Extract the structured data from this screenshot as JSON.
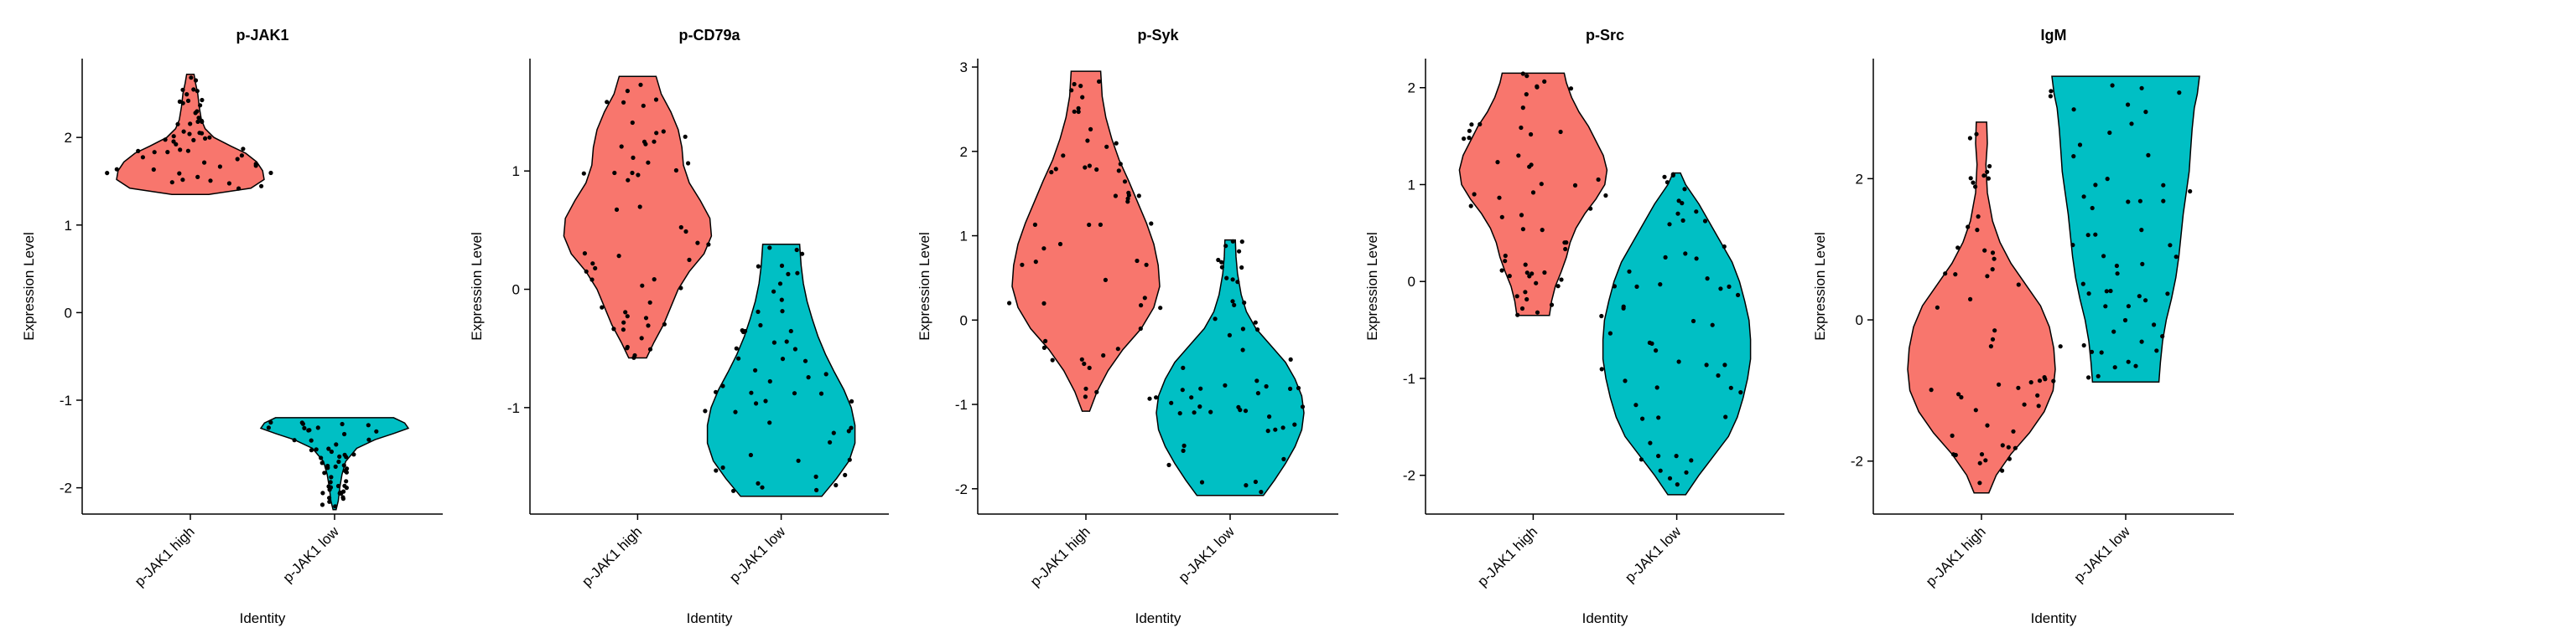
{
  "chart_data": [
    {
      "type": "violin",
      "title": "p-JAK1",
      "xlabel": "Identity",
      "ylabel": "Expression Level",
      "categories": [
        "p-JAK1 high",
        "p-JAK1 low"
      ],
      "yticks": [
        -2,
        -1,
        0,
        1,
        2
      ],
      "ylim": [
        -2.3,
        2.9
      ],
      "colors": [
        "#F8766D",
        "#00BFC4"
      ],
      "groups": [
        {
          "min": 1.35,
          "max": 2.72,
          "profile": [
            [
              1.35,
              0.25
            ],
            [
              1.42,
              0.82
            ],
            [
              1.52,
              1.0
            ],
            [
              1.62,
              0.98
            ],
            [
              1.72,
              0.9
            ],
            [
              1.82,
              0.75
            ],
            [
              1.9,
              0.55
            ],
            [
              2.0,
              0.32
            ],
            [
              2.1,
              0.2
            ],
            [
              2.2,
              0.15
            ],
            [
              2.35,
              0.12
            ],
            [
              2.5,
              0.1
            ],
            [
              2.62,
              0.07
            ],
            [
              2.72,
              0.05
            ]
          ]
        },
        {
          "min": -2.25,
          "max": -1.2,
          "profile": [
            [
              -2.25,
              0.02
            ],
            [
              -2.15,
              0.05
            ],
            [
              -2.0,
              0.07
            ],
            [
              -1.85,
              0.1
            ],
            [
              -1.7,
              0.15
            ],
            [
              -1.55,
              0.3
            ],
            [
              -1.45,
              0.55
            ],
            [
              -1.38,
              0.8
            ],
            [
              -1.32,
              1.0
            ],
            [
              -1.26,
              0.95
            ],
            [
              -1.2,
              0.8
            ]
          ]
        }
      ]
    },
    {
      "type": "violin",
      "title": "p-CD79a",
      "xlabel": "Identity",
      "ylabel": "Expression Level",
      "categories": [
        "p-JAK1 high",
        "p-JAK1 low"
      ],
      "yticks": [
        -1,
        0,
        1
      ],
      "ylim": [
        -1.9,
        1.95
      ],
      "colors": [
        "#F8766D",
        "#00BFC4"
      ],
      "groups": [
        {
          "min": -0.58,
          "max": 1.8,
          "profile": [
            [
              -0.58,
              0.12
            ],
            [
              -0.45,
              0.22
            ],
            [
              -0.3,
              0.35
            ],
            [
              -0.15,
              0.45
            ],
            [
              0.0,
              0.55
            ],
            [
              0.15,
              0.7
            ],
            [
              0.3,
              0.9
            ],
            [
              0.45,
              1.0
            ],
            [
              0.6,
              0.98
            ],
            [
              0.75,
              0.85
            ],
            [
              0.9,
              0.7
            ],
            [
              1.05,
              0.62
            ],
            [
              1.2,
              0.6
            ],
            [
              1.35,
              0.55
            ],
            [
              1.5,
              0.45
            ],
            [
              1.65,
              0.32
            ],
            [
              1.8,
              0.25
            ]
          ]
        },
        {
          "min": -1.75,
          "max": 0.38,
          "profile": [
            [
              -1.75,
              0.55
            ],
            [
              -1.6,
              0.75
            ],
            [
              -1.45,
              0.92
            ],
            [
              -1.3,
              1.0
            ],
            [
              -1.15,
              1.0
            ],
            [
              -1.0,
              0.95
            ],
            [
              -0.85,
              0.85
            ],
            [
              -0.7,
              0.72
            ],
            [
              -0.55,
              0.6
            ],
            [
              -0.4,
              0.5
            ],
            [
              -0.25,
              0.42
            ],
            [
              -0.1,
              0.35
            ],
            [
              0.05,
              0.3
            ],
            [
              0.2,
              0.27
            ],
            [
              0.38,
              0.25
            ]
          ]
        }
      ]
    },
    {
      "type": "violin",
      "title": "p-Syk",
      "xlabel": "Identity",
      "ylabel": "Expression Level",
      "categories": [
        "p-JAK1 high",
        "p-JAK1 low"
      ],
      "yticks": [
        -2,
        -1,
        0,
        1,
        2,
        3
      ],
      "ylim": [
        -2.3,
        3.1
      ],
      "colors": [
        "#F8766D",
        "#00BFC4"
      ],
      "groups": [
        {
          "min": -1.08,
          "max": 2.95,
          "profile": [
            [
              -1.08,
              0.05
            ],
            [
              -0.85,
              0.15
            ],
            [
              -0.6,
              0.3
            ],
            [
              -0.35,
              0.5
            ],
            [
              -0.1,
              0.75
            ],
            [
              0.15,
              0.92
            ],
            [
              0.4,
              1.0
            ],
            [
              0.65,
              0.98
            ],
            [
              0.9,
              0.92
            ],
            [
              1.15,
              0.82
            ],
            [
              1.4,
              0.7
            ],
            [
              1.65,
              0.58
            ],
            [
              1.9,
              0.45
            ],
            [
              2.15,
              0.35
            ],
            [
              2.4,
              0.27
            ],
            [
              2.65,
              0.22
            ],
            [
              2.95,
              0.2
            ]
          ]
        },
        {
          "min": -2.08,
          "max": 0.95,
          "profile": [
            [
              -2.08,
              0.45
            ],
            [
              -1.9,
              0.6
            ],
            [
              -1.7,
              0.75
            ],
            [
              -1.5,
              0.88
            ],
            [
              -1.3,
              0.97
            ],
            [
              -1.1,
              1.0
            ],
            [
              -0.9,
              0.97
            ],
            [
              -0.7,
              0.88
            ],
            [
              -0.5,
              0.75
            ],
            [
              -0.3,
              0.55
            ],
            [
              -0.1,
              0.35
            ],
            [
              0.1,
              0.22
            ],
            [
              0.3,
              0.15
            ],
            [
              0.55,
              0.1
            ],
            [
              0.75,
              0.08
            ],
            [
              0.95,
              0.07
            ]
          ]
        }
      ]
    },
    {
      "type": "violin",
      "title": "p-Src",
      "xlabel": "Identity",
      "ylabel": "Expression Level",
      "categories": [
        "p-JAK1 high",
        "p-JAK1 low"
      ],
      "yticks": [
        -2,
        -1,
        0,
        1,
        2
      ],
      "ylim": [
        -2.4,
        2.3
      ],
      "colors": [
        "#F8766D",
        "#00BFC4"
      ],
      "groups": [
        {
          "min": -0.35,
          "max": 2.15,
          "profile": [
            [
              -0.35,
              0.22
            ],
            [
              -0.2,
              0.25
            ],
            [
              -0.05,
              0.3
            ],
            [
              0.1,
              0.38
            ],
            [
              0.25,
              0.45
            ],
            [
              0.4,
              0.5
            ],
            [
              0.55,
              0.58
            ],
            [
              0.7,
              0.7
            ],
            [
              0.85,
              0.85
            ],
            [
              1.0,
              0.97
            ],
            [
              1.15,
              1.0
            ],
            [
              1.3,
              0.95
            ],
            [
              1.45,
              0.85
            ],
            [
              1.6,
              0.75
            ],
            [
              1.75,
              0.62
            ],
            [
              1.9,
              0.52
            ],
            [
              2.05,
              0.45
            ],
            [
              2.15,
              0.42
            ]
          ]
        },
        {
          "min": -2.2,
          "max": 1.12,
          "profile": [
            [
              -2.2,
              0.12
            ],
            [
              -2.0,
              0.3
            ],
            [
              -1.8,
              0.5
            ],
            [
              -1.6,
              0.7
            ],
            [
              -1.4,
              0.82
            ],
            [
              -1.2,
              0.9
            ],
            [
              -1.0,
              0.96
            ],
            [
              -0.8,
              1.0
            ],
            [
              -0.6,
              1.0
            ],
            [
              -0.4,
              0.98
            ],
            [
              -0.2,
              0.92
            ],
            [
              0.0,
              0.85
            ],
            [
              0.2,
              0.75
            ],
            [
              0.4,
              0.6
            ],
            [
              0.6,
              0.45
            ],
            [
              0.8,
              0.3
            ],
            [
              1.0,
              0.12
            ],
            [
              1.12,
              0.05
            ]
          ]
        }
      ]
    },
    {
      "type": "violin",
      "title": "IgM",
      "xlabel": "Identity",
      "ylabel": "Expression Level",
      "categories": [
        "p-JAK1 high",
        "p-JAK1 low"
      ],
      "yticks": [
        -2,
        0,
        2
      ],
      "ylim": [
        -2.75,
        3.7
      ],
      "colors": [
        "#F8766D",
        "#00BFC4"
      ],
      "groups": [
        {
          "min": -2.45,
          "max": 2.8,
          "profile": [
            [
              -2.45,
              0.1
            ],
            [
              -2.2,
              0.2
            ],
            [
              -1.9,
              0.4
            ],
            [
              -1.6,
              0.65
            ],
            [
              -1.3,
              0.85
            ],
            [
              -1.0,
              0.97
            ],
            [
              -0.7,
              1.0
            ],
            [
              -0.4,
              0.98
            ],
            [
              -0.1,
              0.92
            ],
            [
              0.2,
              0.8
            ],
            [
              0.5,
              0.6
            ],
            [
              0.8,
              0.4
            ],
            [
              1.1,
              0.25
            ],
            [
              1.4,
              0.15
            ],
            [
              1.8,
              0.08
            ],
            [
              2.2,
              0.06
            ],
            [
              2.5,
              0.08
            ],
            [
              2.8,
              0.07
            ]
          ]
        },
        {
          "min": -0.88,
          "max": 3.45,
          "profile": [
            [
              -0.88,
              0.45
            ],
            [
              -0.6,
              0.47
            ],
            [
              -0.3,
              0.5
            ],
            [
              0.0,
              0.55
            ],
            [
              0.3,
              0.62
            ],
            [
              0.6,
              0.68
            ],
            [
              0.9,
              0.72
            ],
            [
              1.2,
              0.75
            ],
            [
              1.5,
              0.78
            ],
            [
              1.8,
              0.82
            ],
            [
              2.1,
              0.86
            ],
            [
              2.4,
              0.88
            ],
            [
              2.7,
              0.9
            ],
            [
              3.0,
              0.93
            ],
            [
              3.2,
              0.97
            ],
            [
              3.45,
              1.0
            ]
          ]
        }
      ]
    }
  ]
}
